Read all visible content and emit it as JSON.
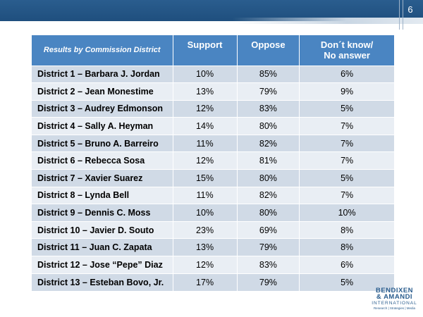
{
  "slide": {
    "page_number": "6"
  },
  "table": {
    "header": {
      "label": "Results by Commission District",
      "support": "Support",
      "oppose": "Oppose",
      "dont_know_1": "Don´t know/",
      "dont_know_2": "No answer"
    },
    "rows": [
      {
        "district": "District 1 – Barbara J. Jordan",
        "support": "10%",
        "oppose": "85%",
        "dont_know": "6%"
      },
      {
        "district": "District 2 – Jean Monestime",
        "support": "13%",
        "oppose": "79%",
        "dont_know": "9%"
      },
      {
        "district": "District 3 – Audrey Edmonson",
        "support": "12%",
        "oppose": "83%",
        "dont_know": "5%"
      },
      {
        "district": "District 4 – Sally A. Heyman",
        "support": "14%",
        "oppose": "80%",
        "dont_know": "7%"
      },
      {
        "district": "District 5 – Bruno A. Barreiro",
        "support": "11%",
        "oppose": "82%",
        "dont_know": "7%"
      },
      {
        "district": "District 6 – Rebecca Sosa",
        "support": "12%",
        "oppose": "81%",
        "dont_know": "7%"
      },
      {
        "district": "District 7 – Xavier Suarez",
        "support": "15%",
        "oppose": "80%",
        "dont_know": "5%"
      },
      {
        "district": "District 8 – Lynda Bell",
        "support": "11%",
        "oppose": "82%",
        "dont_know": "7%"
      },
      {
        "district": "District 9 – Dennis C. Moss",
        "support": "10%",
        "oppose": "80%",
        "dont_know": "10%"
      },
      {
        "district": "District 10 – Javier D. Souto",
        "support": "23%",
        "oppose": "69%",
        "dont_know": "8%"
      },
      {
        "district": "District 11 – Juan C. Zapata",
        "support": "13%",
        "oppose": "79%",
        "dont_know": "8%"
      },
      {
        "district": "District 12 – Jose “Pepe” Diaz",
        "support": "12%",
        "oppose": "83%",
        "dont_know": "6%"
      },
      {
        "district": "District 13 – Esteban Bovo, Jr.",
        "support": "17%",
        "oppose": "79%",
        "dont_know": "5%"
      }
    ]
  },
  "logo": {
    "line1": "BENDIXEN",
    "line2": "& AMANDI",
    "line3": "INTERNATIONAL",
    "tagline": "Research | Strategies | Media"
  },
  "colors": {
    "header_bar": "#1f4f7e",
    "table_header": "#4a85c2",
    "row_odd": "#d0dae6",
    "row_even": "#e9eef4"
  }
}
